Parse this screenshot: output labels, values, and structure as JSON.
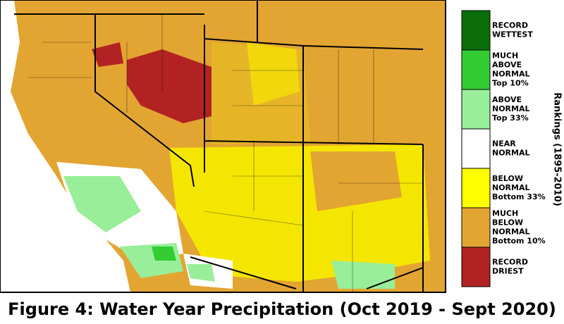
{
  "legend": {
    "title": "Rankings (1895-2010)",
    "items": [
      {
        "lines": [
          "RECORD",
          "WETTEST"
        ]
      },
      {
        "lines": [
          "MUCH",
          "ABOVE",
          "NORMAL",
          "Top 10%"
        ]
      },
      {
        "lines": [
          "ABOVE",
          "NORMAL",
          "Top 33%"
        ]
      },
      {
        "lines": [
          "NEAR",
          "NORMAL"
        ]
      },
      {
        "lines": [
          "BELOW",
          "NORMAL",
          "Bottom 33%"
        ]
      },
      {
        "lines": [
          "MUCH",
          "BELOW",
          "NORMAL",
          "Bottom 10%"
        ]
      },
      {
        "lines": [
          "RECORD",
          "DRIEST"
        ]
      }
    ]
  },
  "caption": "Figure 4: Water Year Precipitation (Oct 2019 - Sept 2020)"
}
